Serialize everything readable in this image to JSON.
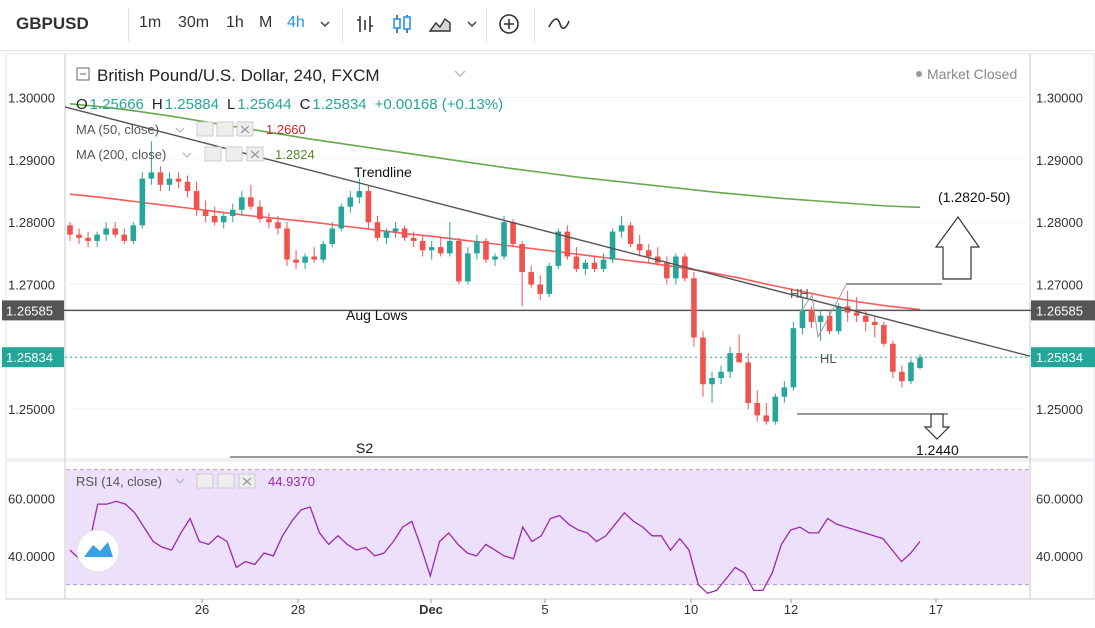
{
  "toolbar": {
    "symbol": "GBPUSD",
    "timeframes": [
      "1m",
      "30m",
      "1h",
      "M",
      "4h"
    ],
    "active_timeframe": "4h"
  },
  "legend": {
    "title": "British Pound/U.S. Dollar, 240, FXCM",
    "status": "Market Closed",
    "o_label": "O",
    "o_value": "1.25666",
    "h_label": "H",
    "h_value": "1.25884",
    "l_label": "L",
    "l_value": "1.25644",
    "c_label": "C",
    "c_value": "1.25834",
    "change": "+0.00168 (+0.13%)",
    "ma50_label": "MA (50, close)",
    "ma50_value": "1.2660",
    "ma200_label": "MA (200, close)",
    "ma200_value": "1.2824",
    "rsi_label": "RSI (14, close)",
    "rsi_value": "44.9370"
  },
  "colors": {
    "up": "#26a69a",
    "down": "#ef5350",
    "ma50": "#f45b5b",
    "ma200": "#6aa84f",
    "rsi": "#9c27b0",
    "rsi_band": "#ede0fa",
    "accent": "#2196f3",
    "price_tag": "#26a69a"
  },
  "annotations": {
    "trendline": "Trendline",
    "aug_lows": "Aug Lows",
    "hh": "HH",
    "hl": "HL",
    "target_up": "(1.2820-50)",
    "target_down": "1.2440",
    "s2": "S2"
  },
  "chart_data": [
    {
      "type": "candlestick",
      "title": "British Pound/U.S. Dollar, 240, FXCM",
      "ylim": [
        1.242,
        1.307
      ],
      "y_ticks": [
        "1.30000",
        "1.29000",
        "1.28000",
        "1.27000",
        "1.25000"
      ],
      "x_ticks": [
        "26",
        "28",
        "Dec",
        "5",
        "10",
        "12",
        "17"
      ],
      "horizontal_line": {
        "value": 1.26585,
        "label": "1.26585"
      },
      "last_price": {
        "value": 1.25834,
        "label": "1.25834"
      },
      "trendline": [
        [
          0.0,
          1.2985
        ],
        [
          1.0,
          1.2585
        ]
      ],
      "ohlc": [
        [
          1.2795,
          1.28,
          1.277,
          1.278
        ],
        [
          1.278,
          1.279,
          1.2765,
          1.2775
        ],
        [
          1.2775,
          1.2785,
          1.276,
          1.277
        ],
        [
          1.277,
          1.2785,
          1.276,
          1.278
        ],
        [
          1.278,
          1.28,
          1.277,
          1.279
        ],
        [
          1.279,
          1.28,
          1.2775,
          1.278
        ],
        [
          1.278,
          1.279,
          1.2765,
          1.277
        ],
        [
          1.277,
          1.28,
          1.2765,
          1.2795
        ],
        [
          1.2795,
          1.288,
          1.279,
          1.287
        ],
        [
          1.287,
          1.293,
          1.286,
          1.288
        ],
        [
          1.288,
          1.289,
          1.285,
          1.286
        ],
        [
          1.286,
          1.288,
          1.285,
          1.287
        ],
        [
          1.287,
          1.288,
          1.2855,
          1.2865
        ],
        [
          1.2865,
          1.2875,
          1.284,
          1.285
        ],
        [
          1.285,
          1.2865,
          1.281,
          1.282
        ],
        [
          1.282,
          1.2835,
          1.28,
          1.281
        ],
        [
          1.281,
          1.2825,
          1.2795,
          1.28
        ],
        [
          1.28,
          1.2815,
          1.279,
          1.281
        ],
        [
          1.281,
          1.283,
          1.28,
          1.282
        ],
        [
          1.282,
          1.285,
          1.281,
          1.284
        ],
        [
          1.284,
          1.286,
          1.282,
          1.2825
        ],
        [
          1.2825,
          1.2835,
          1.28,
          1.2805
        ],
        [
          1.2805,
          1.2815,
          1.279,
          1.28
        ],
        [
          1.28,
          1.281,
          1.278,
          1.279
        ],
        [
          1.279,
          1.28,
          1.273,
          1.274
        ],
        [
          1.274,
          1.2755,
          1.2725,
          1.2735
        ],
        [
          1.2735,
          1.275,
          1.2725,
          1.2745
        ],
        [
          1.2745,
          1.276,
          1.2735,
          1.274
        ],
        [
          1.274,
          1.277,
          1.2735,
          1.2765
        ],
        [
          1.2765,
          1.28,
          1.276,
          1.279
        ],
        [
          1.279,
          1.283,
          1.2785,
          1.2825
        ],
        [
          1.2825,
          1.285,
          1.2815,
          1.284
        ],
        [
          1.284,
          1.287,
          1.283,
          1.285
        ],
        [
          1.285,
          1.286,
          1.279,
          1.28
        ],
        [
          1.28,
          1.281,
          1.277,
          1.2775
        ],
        [
          1.2775,
          1.279,
          1.2765,
          1.2785
        ],
        [
          1.2785,
          1.28,
          1.2775,
          1.279
        ],
        [
          1.279,
          1.2795,
          1.277,
          1.2775
        ],
        [
          1.2775,
          1.2785,
          1.276,
          1.277
        ],
        [
          1.277,
          1.278,
          1.2745,
          1.2755
        ],
        [
          1.2755,
          1.277,
          1.274,
          1.276
        ],
        [
          1.276,
          1.2775,
          1.2745,
          1.275
        ],
        [
          1.275,
          1.28,
          1.2745,
          1.277
        ],
        [
          1.277,
          1.2775,
          1.27,
          1.2705
        ],
        [
          1.2705,
          1.276,
          1.27,
          1.275
        ],
        [
          1.275,
          1.278,
          1.274,
          1.277
        ],
        [
          1.277,
          1.2775,
          1.2735,
          1.274
        ],
        [
          1.274,
          1.275,
          1.273,
          1.2745
        ],
        [
          1.2745,
          1.281,
          1.274,
          1.28
        ],
        [
          1.28,
          1.2805,
          1.276,
          1.2765
        ],
        [
          1.2765,
          1.277,
          1.2665,
          1.272
        ],
        [
          1.272,
          1.273,
          1.2695,
          1.27
        ],
        [
          1.27,
          1.2715,
          1.2675,
          1.2685
        ],
        [
          1.2685,
          1.2735,
          1.268,
          1.273
        ],
        [
          1.273,
          1.279,
          1.2725,
          1.2785
        ],
        [
          1.2785,
          1.2795,
          1.274,
          1.2745
        ],
        [
          1.2745,
          1.276,
          1.272,
          1.2725
        ],
        [
          1.2725,
          1.274,
          1.2715,
          1.2735
        ],
        [
          1.2735,
          1.2745,
          1.272,
          1.2725
        ],
        [
          1.2725,
          1.275,
          1.272,
          1.274
        ],
        [
          1.274,
          1.279,
          1.2735,
          1.2785
        ],
        [
          1.2785,
          1.281,
          1.2775,
          1.2795
        ],
        [
          1.2795,
          1.28,
          1.276,
          1.2765
        ],
        [
          1.2765,
          1.278,
          1.2745,
          1.2755
        ],
        [
          1.2755,
          1.2765,
          1.2735,
          1.2745
        ],
        [
          1.2745,
          1.276,
          1.273,
          1.2735
        ],
        [
          1.2735,
          1.2745,
          1.27,
          1.271
        ],
        [
          1.271,
          1.275,
          1.27,
          1.2745
        ],
        [
          1.2745,
          1.275,
          1.2705,
          1.271
        ],
        [
          1.271,
          1.272,
          1.26,
          1.2615
        ],
        [
          1.2615,
          1.2625,
          1.252,
          1.254
        ],
        [
          1.254,
          1.256,
          1.251,
          1.255
        ],
        [
          1.255,
          1.257,
          1.254,
          1.256
        ],
        [
          1.256,
          1.26,
          1.255,
          1.259
        ],
        [
          1.259,
          1.262,
          1.258,
          1.2575
        ],
        [
          1.2575,
          1.259,
          1.25,
          1.251
        ],
        [
          1.251,
          1.253,
          1.248,
          1.249
        ],
        [
          1.249,
          1.251,
          1.2475,
          1.248
        ],
        [
          1.248,
          1.2525,
          1.2475,
          1.252
        ],
        [
          1.252,
          1.2545,
          1.251,
          1.2535
        ],
        [
          1.2535,
          1.264,
          1.253,
          1.263
        ],
        [
          1.263,
          1.268,
          1.262,
          1.266
        ],
        [
          1.266,
          1.2665,
          1.263,
          1.264
        ],
        [
          1.264,
          1.266,
          1.261,
          1.265
        ],
        [
          1.265,
          1.266,
          1.262,
          1.2625
        ],
        [
          1.2625,
          1.267,
          1.262,
          1.2665
        ],
        [
          1.2665,
          1.269,
          1.264,
          1.2655
        ],
        [
          1.2655,
          1.268,
          1.264,
          1.265
        ],
        [
          1.265,
          1.266,
          1.2625,
          1.264
        ],
        [
          1.264,
          1.265,
          1.2615,
          1.2635
        ],
        [
          1.2635,
          1.264,
          1.26,
          1.2605
        ],
        [
          1.2605,
          1.261,
          1.255,
          1.256
        ],
        [
          1.256,
          1.257,
          1.2535,
          1.2545
        ],
        [
          1.2545,
          1.258,
          1.254,
          1.2575
        ],
        [
          1.2566,
          1.2588,
          1.2564,
          1.2583
        ]
      ],
      "ma50": [
        1.2845,
        1.284,
        1.2834,
        1.2828,
        1.2822,
        1.2816,
        1.281,
        1.2805,
        1.28,
        1.2794,
        1.2788,
        1.2782,
        1.2777,
        1.2771,
        1.2765,
        1.2759,
        1.2753,
        1.2747,
        1.2741,
        1.2735,
        1.2728,
        1.272,
        1.2711,
        1.27,
        1.269,
        1.268,
        1.2672,
        1.2665,
        1.266
      ],
      "ma200": [
        1.299,
        1.2985,
        1.2978,
        1.297,
        1.2961,
        1.2952,
        1.2943,
        1.2934,
        1.2926,
        1.2918,
        1.291,
        1.2902,
        1.2894,
        1.2886,
        1.2879,
        1.2872,
        1.2866,
        1.286,
        1.2854,
        1.2848,
        1.2843,
        1.2838,
        1.2834,
        1.283,
        1.2826,
        1.2824
      ]
    },
    {
      "type": "line",
      "title": "RSI (14, close)",
      "ylim": [
        25,
        73
      ],
      "y_ticks": [
        "60.0000",
        "40.0000"
      ],
      "band": [
        30,
        70
      ],
      "values": [
        42,
        39,
        43,
        58,
        58,
        59,
        58,
        55,
        50,
        45,
        43,
        42,
        48,
        53,
        45,
        44,
        47,
        45,
        36,
        38,
        37,
        41,
        40,
        47,
        52,
        56,
        57,
        48,
        44,
        47,
        44,
        42,
        43,
        40,
        41,
        45,
        50,
        52,
        43,
        33,
        45,
        48,
        44,
        41,
        40,
        44,
        42,
        40,
        39,
        50,
        45,
        47,
        53,
        54,
        51,
        49,
        48,
        45,
        47,
        51,
        55,
        52,
        50,
        47,
        47,
        42,
        46,
        42,
        30,
        27,
        28,
        32,
        36,
        34,
        28,
        28,
        34,
        44,
        49,
        50,
        48,
        48,
        53,
        51,
        50,
        49,
        48,
        47,
        46,
        42,
        38,
        41,
        45
      ]
    }
  ]
}
